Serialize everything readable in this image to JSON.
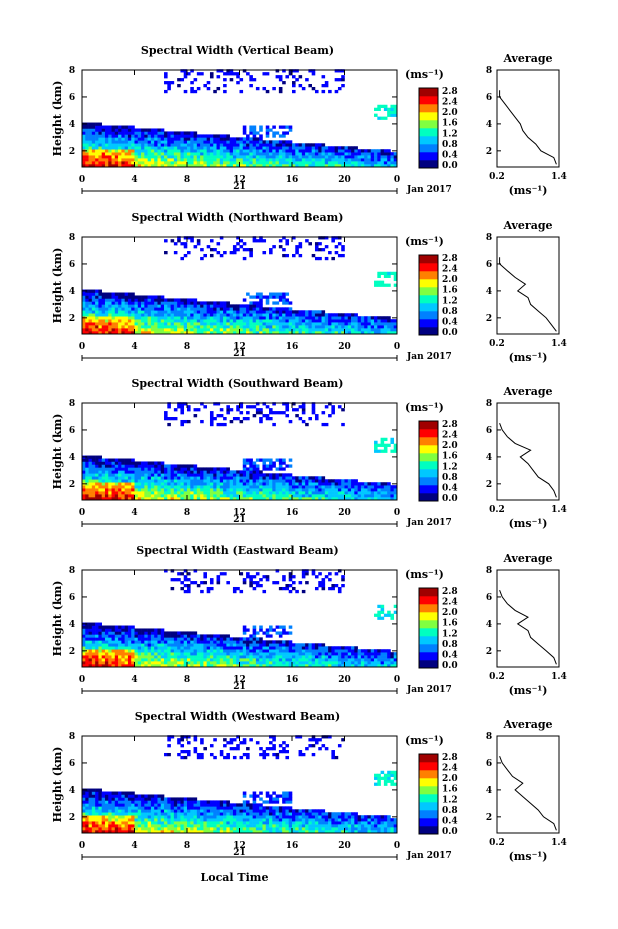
{
  "x_axis_label": "Local Time",
  "date_label": "Jan 2017",
  "day_label": "21",
  "x_ticks": [
    "0",
    "4",
    "8",
    "12",
    "16",
    "20",
    "0"
  ],
  "y_ticks": [
    "2",
    "4",
    "6",
    "8"
  ],
  "y_axis_label": "Height (km)",
  "colorbar_unit": "(ms⁻¹)",
  "colorbar_ticks": [
    "0.0",
    "0.4",
    "0.8",
    "1.2",
    "1.6",
    "2.0",
    "2.4",
    "2.8"
  ],
  "colorbar_range": [
    0.0,
    3.0
  ],
  "colormap": [
    "#000080",
    "#0000ff",
    "#0080ff",
    "#00c8ff",
    "#00ffc0",
    "#80ff40",
    "#ffff00",
    "#ff8000",
    "#ff0000",
    "#a00000"
  ],
  "avg_title": "Average",
  "avg_x_ticks": [
    "0.2",
    "1.4"
  ],
  "avg_y_ticks": [
    "2",
    "4",
    "6",
    "8"
  ],
  "avg_unit": "(ms⁻¹)",
  "chart_data": [
    {
      "type": "heatmap",
      "title": "Spectral Width (Vertical Beam)",
      "xlabel": "Local Time",
      "ylabel": "Height (km)",
      "xlim": [
        0,
        24
      ],
      "ylim": [
        0.8,
        8
      ],
      "colorbar_label": "(ms⁻¹)",
      "average_profile": {
        "title": "Average",
        "xlim": [
          0.2,
          1.4
        ],
        "height": [
          1.0,
          1.5,
          2.0,
          2.5,
          3.0,
          3.5,
          4.0,
          4.5,
          5.0,
          5.5,
          6.0,
          6.5
        ],
        "width": [
          1.35,
          1.3,
          1.05,
          0.95,
          0.8,
          0.7,
          0.65,
          0.55,
          0.45,
          0.35,
          0.25,
          0.25
        ]
      }
    },
    {
      "type": "heatmap",
      "title": "Spectral Width (Northward Beam)",
      "xlabel": "Local Time",
      "ylabel": "Height (km)",
      "xlim": [
        0,
        24
      ],
      "ylim": [
        0.8,
        8
      ],
      "colorbar_label": "(ms⁻¹)",
      "average_profile": {
        "title": "Average",
        "xlim": [
          0.2,
          1.4
        ],
        "height": [
          1.0,
          1.5,
          2.0,
          2.5,
          3.0,
          3.5,
          4.0,
          4.5,
          5.0,
          5.5,
          6.0,
          6.5
        ],
        "width": [
          1.35,
          1.25,
          1.15,
          1.0,
          0.85,
          0.8,
          0.6,
          0.75,
          0.55,
          0.4,
          0.25,
          0.25
        ]
      }
    },
    {
      "type": "heatmap",
      "title": "Spectral Width (Southward Beam)",
      "xlabel": "Local Time",
      "ylabel": "Height (km)",
      "xlim": [
        0,
        24
      ],
      "ylim": [
        0.8,
        8
      ],
      "colorbar_label": "(ms⁻¹)",
      "average_profile": {
        "title": "Average",
        "xlim": [
          0.2,
          1.4
        ],
        "height": [
          1.0,
          1.5,
          2.0,
          2.5,
          3.0,
          3.5,
          4.0,
          4.5,
          5.0,
          5.5,
          6.0,
          6.5
        ],
        "width": [
          1.35,
          1.3,
          1.2,
          1.0,
          0.9,
          0.8,
          0.65,
          0.85,
          0.55,
          0.4,
          0.3,
          0.25
        ]
      }
    },
    {
      "type": "heatmap",
      "title": "Spectral Width (Eastward Beam)",
      "xlabel": "Local Time",
      "ylabel": "Height (km)",
      "xlim": [
        0,
        24
      ],
      "ylim": [
        0.8,
        8
      ],
      "colorbar_label": "(ms⁻¹)",
      "average_profile": {
        "title": "Average",
        "xlim": [
          0.2,
          1.4
        ],
        "height": [
          1.0,
          1.5,
          2.0,
          2.5,
          3.0,
          3.5,
          4.0,
          4.5,
          5.0,
          5.5,
          6.0,
          6.5
        ],
        "width": [
          1.35,
          1.3,
          1.15,
          1.0,
          0.85,
          0.8,
          0.6,
          0.8,
          0.55,
          0.4,
          0.3,
          0.25
        ]
      }
    },
    {
      "type": "heatmap",
      "title": "Spectral Width (Westward Beam)",
      "xlabel": "Local Time",
      "ylabel": "Height (km)",
      "xlim": [
        0,
        24
      ],
      "ylim": [
        0.8,
        8
      ],
      "colorbar_label": "(ms⁻¹)",
      "average_profile": {
        "title": "Average",
        "xlim": [
          0.2,
          1.4
        ],
        "height": [
          1.0,
          1.5,
          2.0,
          2.5,
          3.0,
          3.5,
          4.0,
          4.5,
          5.0,
          5.5,
          6.0,
          6.5
        ],
        "width": [
          1.35,
          1.3,
          1.1,
          1.0,
          0.85,
          0.7,
          0.55,
          0.7,
          0.5,
          0.4,
          0.3,
          0.25
        ]
      }
    }
  ]
}
